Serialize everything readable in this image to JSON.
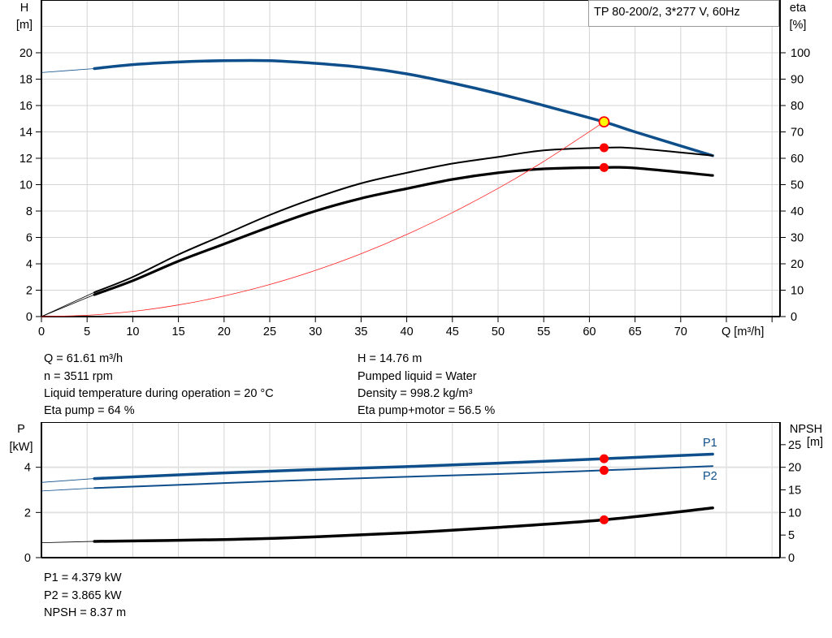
{
  "title_box": "TP 80-200/2, 3*277 V, 60Hz",
  "colors": {
    "head": "#0e4f8b",
    "efficiency": "#000000",
    "system": "#ff2020",
    "duty_point": "#ff0000",
    "duty_point_head_fill": "#ffff00",
    "power": "#0e4f8b",
    "npsh": "#000000"
  },
  "info_left": [
    "Q = 61.61 m³/h",
    "n = 3511 rpm",
    "Liquid temperature during operation = 20 °C",
    "Eta pump = 64 %"
  ],
  "info_right": [
    "H = 14.76 m",
    "Pumped liquid = Water",
    "Density = 998.2 kg/m³",
    "Eta pump+motor = 56.5 %"
  ],
  "info_bottom": [
    "P1 = 4.379 kW",
    "P2 = 3.865 kW",
    "NPSH = 8.37 m"
  ],
  "chart_data": [
    {
      "type": "line",
      "xlabel": "Q [m³/h]",
      "ylabel": "H",
      "ylabel_unit": "[m]",
      "y2label": "eta",
      "y2label_unit": "[%]",
      "xlim": [
        0,
        80
      ],
      "ylim": [
        0,
        24
      ],
      "y2lim": [
        0,
        120
      ],
      "xticks": [
        0,
        5,
        10,
        15,
        20,
        25,
        30,
        35,
        40,
        45,
        50,
        55,
        60,
        65,
        70
      ],
      "yticks": [
        0,
        2,
        4,
        6,
        8,
        10,
        12,
        14,
        16,
        18,
        20
      ],
      "y2ticks": [
        0,
        10,
        20,
        30,
        40,
        50,
        60,
        70,
        80,
        90,
        100
      ],
      "grid": true,
      "series": [
        {
          "key": "head",
          "axis": "y",
          "x": [
            5.8,
            10,
            15,
            20,
            25,
            30,
            35,
            40,
            45,
            50,
            55,
            61.61,
            65,
            73.5
          ],
          "y": [
            18.8,
            19.1,
            19.3,
            19.4,
            19.4,
            19.2,
            18.9,
            18.4,
            17.7,
            16.9,
            16.0,
            14.76,
            14.0,
            12.2
          ],
          "extension": {
            "x": [
              0,
              5.8
            ],
            "y": [
              18.5,
              18.8
            ]
          }
        },
        {
          "key": "eta_pump",
          "axis": "y2",
          "x": [
            5.8,
            10,
            15,
            20,
            25,
            30,
            35,
            40,
            45,
            50,
            55,
            61.61,
            65,
            73.5
          ],
          "y": [
            9.2,
            15,
            23.5,
            31,
            38.5,
            45,
            50.5,
            54.5,
            58,
            60.5,
            63,
            64,
            63.8,
            61
          ],
          "extension": {
            "x": [
              0,
              5.8
            ],
            "y": [
              0,
              9.2
            ]
          }
        },
        {
          "key": "eta_pump_motor",
          "axis": "y2",
          "x": [
            5.8,
            10,
            15,
            20,
            25,
            30,
            35,
            40,
            45,
            50,
            55,
            61.61,
            65,
            73.5
          ],
          "y": [
            8.3,
            13.6,
            21,
            27.5,
            34,
            40,
            44.8,
            48.5,
            52,
            54.5,
            56,
            56.5,
            56.3,
            53.5
          ],
          "extension": {
            "x": [
              0,
              5.8
            ],
            "y": [
              0,
              8.3
            ]
          }
        },
        {
          "key": "system_curve",
          "axis": "y",
          "x": [
            0,
            5,
            10,
            15,
            20,
            25,
            30,
            35,
            40,
            45,
            50,
            55,
            61.61
          ],
          "y": [
            0,
            0.1,
            0.39,
            0.88,
            1.56,
            2.43,
            3.5,
            4.76,
            6.22,
            7.88,
            9.72,
            11.76,
            14.76
          ]
        }
      ],
      "duty_point": {
        "Q": 61.61,
        "H": 14.76,
        "eta_pump": 64,
        "eta_pump_motor": 56.5
      }
    },
    {
      "type": "line",
      "ylabel": "P",
      "ylabel_unit": "[kW]",
      "y2label": "NPSH",
      "y2label_unit": "[m]",
      "xlim": [
        0,
        80
      ],
      "ylim": [
        0,
        6
      ],
      "y2lim": [
        0,
        30
      ],
      "yticks": [
        0,
        2,
        4
      ],
      "y2ticks": [
        0,
        5,
        10,
        15,
        20,
        25
      ],
      "grid": true,
      "series": [
        {
          "key": "P1",
          "name": "P1",
          "axis": "y",
          "x": [
            5.8,
            20,
            30,
            40,
            50,
            61.61,
            73.5
          ],
          "y": [
            3.5,
            3.75,
            3.9,
            4.03,
            4.18,
            4.379,
            4.58
          ],
          "extension": {
            "x": [
              0,
              5.8
            ],
            "y": [
              3.33,
              3.5
            ]
          }
        },
        {
          "key": "P2",
          "name": "P2",
          "axis": "y",
          "x": [
            5.8,
            20,
            30,
            40,
            50,
            61.61,
            73.5
          ],
          "y": [
            3.08,
            3.3,
            3.45,
            3.58,
            3.7,
            3.865,
            4.05
          ],
          "extension": {
            "x": [
              0,
              5.8
            ],
            "y": [
              2.95,
              3.08
            ]
          }
        },
        {
          "key": "NPSH",
          "axis": "y2",
          "x": [
            5.8,
            20,
            30,
            40,
            50,
            61.61,
            73.5
          ],
          "y": [
            3.6,
            4.0,
            4.6,
            5.5,
            6.7,
            8.37,
            11.0
          ],
          "extension": {
            "x": [
              0,
              5.8
            ],
            "y": [
              3.3,
              3.6
            ]
          }
        }
      ],
      "duty_point": {
        "Q": 61.61,
        "P1": 4.379,
        "P2": 3.865,
        "NPSH": 8.37
      }
    }
  ]
}
